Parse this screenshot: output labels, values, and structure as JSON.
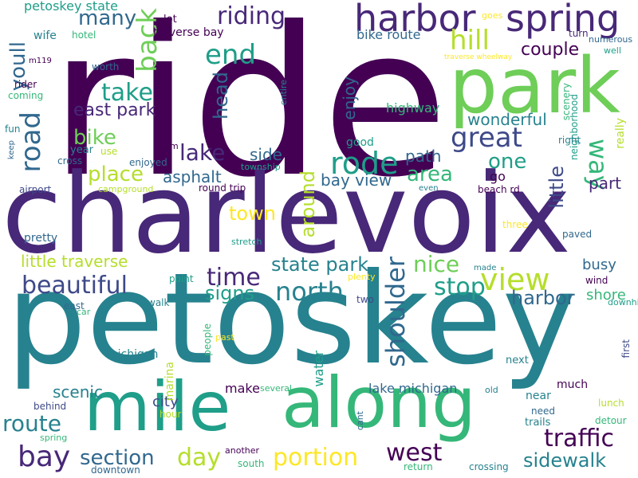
{
  "palette": {
    "dark_purple": "#440154",
    "purple": "#482878",
    "indigo": "#3e4989",
    "blue": "#31688e",
    "teal": "#26828e",
    "green_teal": "#1f9e89",
    "green": "#35b779",
    "light_green": "#6ece58",
    "lime": "#b5de2b",
    "yellow": "#fde725"
  },
  "words": [
    {
      "text": "ride"
    },
    {
      "text": "charlevoix"
    },
    {
      "text": "petoskey"
    },
    {
      "text": "park"
    },
    {
      "text": "mile"
    },
    {
      "text": "along"
    },
    {
      "text": "harbor"
    },
    {
      "text": "spring"
    },
    {
      "text": "riding"
    },
    {
      "text": "back"
    },
    {
      "text": "end"
    },
    {
      "text": "hill"
    },
    {
      "text": "road"
    },
    {
      "text": "take"
    },
    {
      "text": "east park"
    },
    {
      "text": "rode"
    },
    {
      "text": "great"
    },
    {
      "text": "way"
    },
    {
      "text": "lake"
    },
    {
      "text": "bike"
    },
    {
      "text": "place"
    },
    {
      "text": "area"
    },
    {
      "text": "one"
    },
    {
      "text": "asphalt"
    },
    {
      "text": "side"
    },
    {
      "text": "path"
    },
    {
      "text": "bay view"
    },
    {
      "text": "little"
    },
    {
      "text": "part"
    },
    {
      "text": "around"
    },
    {
      "text": "town"
    },
    {
      "text": "little traverse"
    },
    {
      "text": "time"
    },
    {
      "text": "state park"
    },
    {
      "text": "nice"
    },
    {
      "text": "view"
    },
    {
      "text": "beautiful"
    },
    {
      "text": "north"
    },
    {
      "text": "stop"
    },
    {
      "text": "signs"
    },
    {
      "text": "shoulder"
    },
    {
      "text": "harbor"
    },
    {
      "text": "busy"
    },
    {
      "text": "shore"
    },
    {
      "text": "scenic"
    },
    {
      "text": "route"
    },
    {
      "text": "bay"
    },
    {
      "text": "section"
    },
    {
      "text": "day"
    },
    {
      "text": "portion"
    },
    {
      "text": "west"
    },
    {
      "text": "traffic"
    },
    {
      "text": "sidewalk"
    },
    {
      "text": "city"
    },
    {
      "text": "make"
    },
    {
      "text": "lake michigan"
    },
    {
      "text": "many"
    },
    {
      "text": "youll"
    },
    {
      "text": "couple"
    },
    {
      "text": "head"
    },
    {
      "text": "enjoy"
    },
    {
      "text": "wonderful"
    },
    {
      "text": "petoskey state"
    },
    {
      "text": "traverse bay"
    },
    {
      "text": "bike route"
    },
    {
      "text": "highway"
    },
    {
      "text": "good"
    },
    {
      "text": "go"
    },
    {
      "text": "pretty"
    },
    {
      "text": "water"
    },
    {
      "text": "michigan"
    },
    {
      "text": "marina"
    },
    {
      "text": "lot"
    },
    {
      "text": "goes"
    },
    {
      "text": "turn"
    },
    {
      "text": "numerous"
    },
    {
      "text": "well"
    },
    {
      "text": "wife"
    },
    {
      "text": "hotel"
    },
    {
      "text": "m119"
    },
    {
      "text": "worth"
    },
    {
      "text": "traverse wheelway"
    },
    {
      "text": "rider"
    },
    {
      "text": "coming"
    },
    {
      "text": "entire"
    },
    {
      "text": "scenery"
    },
    {
      "text": "neighborhood"
    },
    {
      "text": "really"
    },
    {
      "text": "right"
    },
    {
      "text": "fun"
    },
    {
      "text": "keep"
    },
    {
      "text": "year"
    },
    {
      "text": "use"
    },
    {
      "text": "m"
    },
    {
      "text": "cross"
    },
    {
      "text": "enjoyed"
    },
    {
      "text": "township"
    },
    {
      "text": "airport"
    },
    {
      "text": "campground"
    },
    {
      "text": "round trip"
    },
    {
      "text": "even"
    },
    {
      "text": "beach rd"
    },
    {
      "text": "three"
    },
    {
      "text": "paved"
    },
    {
      "text": "stretch"
    },
    {
      "text": "made"
    },
    {
      "text": "plenty"
    },
    {
      "text": "point"
    },
    {
      "text": "wind"
    },
    {
      "text": "downhill"
    },
    {
      "text": "east"
    },
    {
      "text": "car"
    },
    {
      "text": "walk"
    },
    {
      "text": "two"
    },
    {
      "text": "past"
    },
    {
      "text": "people"
    },
    {
      "text": "first"
    },
    {
      "text": "next"
    },
    {
      "text": "much"
    },
    {
      "text": "near"
    },
    {
      "text": "need"
    },
    {
      "text": "lunch"
    },
    {
      "text": "behind"
    },
    {
      "text": "hour"
    },
    {
      "text": "several"
    },
    {
      "text": "cant"
    },
    {
      "text": "old"
    },
    {
      "text": "trails"
    },
    {
      "text": "detour"
    },
    {
      "text": "spring"
    },
    {
      "text": "another"
    },
    {
      "text": "south"
    },
    {
      "text": "downtown"
    },
    {
      "text": "return"
    },
    {
      "text": "crossing"
    },
    {
      "text": "town"
    }
  ]
}
